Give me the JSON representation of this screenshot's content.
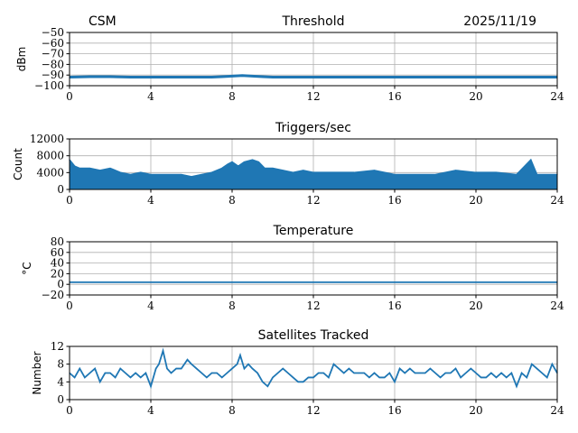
{
  "header": {
    "left": "CSM",
    "date": "2025/11/19"
  },
  "chart_data": [
    {
      "type": "line",
      "title": "Threshold",
      "ylabel": "dBm",
      "xlim": [
        0,
        24
      ],
      "ylim": [
        -100,
        -50
      ],
      "xticks": [
        "0",
        "4",
        "8",
        "12",
        "16",
        "20",
        "24"
      ],
      "yticks": [
        "−50",
        "−60",
        "−70",
        "−80",
        "−90",
        "−100"
      ],
      "grid": true,
      "x": [
        0,
        1,
        2,
        3,
        4,
        5,
        6,
        7,
        7.5,
        8,
        8.5,
        9,
        9.5,
        10,
        12,
        14,
        16,
        18,
        20,
        22,
        24
      ],
      "values": [
        -92,
        -91.5,
        -91.5,
        -92,
        -92,
        -92,
        -92,
        -92,
        -91.5,
        -91,
        -90.5,
        -91,
        -91.5,
        -92,
        -92,
        -92,
        -92,
        -92,
        -92,
        -92,
        -92
      ]
    },
    {
      "type": "line",
      "title": "Triggers/sec",
      "ylabel": "Count",
      "xlim": [
        0,
        24
      ],
      "ylim": [
        0,
        12000
      ],
      "xticks": [
        "0",
        "4",
        "8",
        "12",
        "16",
        "20",
        "24"
      ],
      "yticks": [
        "12000",
        "8000",
        "4000",
        "0"
      ],
      "grid": true,
      "x": [
        0,
        0.25,
        0.5,
        1,
        1.5,
        2,
        2.5,
        3,
        3.5,
        4,
        4.5,
        5,
        5.5,
        6,
        6.5,
        7,
        7.5,
        7.8,
        8,
        8.3,
        8.6,
        9,
        9.3,
        9.6,
        10,
        10.5,
        11,
        11.5,
        12,
        13,
        14,
        15,
        16,
        17,
        18,
        19,
        20,
        21,
        22,
        22.7,
        23,
        24
      ],
      "values": [
        7000,
        5500,
        5000,
        5000,
        4500,
        5000,
        4000,
        3500,
        4000,
        3500,
        3500,
        3500,
        3500,
        3000,
        3500,
        4000,
        5000,
        6000,
        6500,
        5500,
        6500,
        7000,
        6500,
        5000,
        5000,
        4500,
        4000,
        4500,
        4000,
        4000,
        4000,
        4500,
        3500,
        3500,
        3500,
        4500,
        4000,
        4000,
        3500,
        7000,
        3500,
        3500
      ],
      "baseline": [
        1500,
        1500,
        1200,
        1200,
        1200,
        1000,
        1000,
        1000,
        1000,
        1000,
        1000,
        1000,
        1000,
        1000,
        1000,
        1000,
        1000,
        1200,
        1200,
        1200,
        1200,
        1200,
        1200,
        1000,
        1000,
        1000,
        1000,
        1000,
        1000,
        1000,
        1000,
        1000,
        1000,
        1000,
        1000,
        1000,
        1000,
        1000,
        1000,
        1000,
        1000,
        1000
      ]
    },
    {
      "type": "line",
      "title": "Temperature",
      "ylabel": "°C",
      "xlim": [
        0,
        24
      ],
      "ylim": [
        -20,
        80
      ],
      "xticks": [
        "0",
        "4",
        "8",
        "12",
        "16",
        "20",
        "24"
      ],
      "yticks": [
        "80",
        "60",
        "40",
        "20",
        "0",
        "−20"
      ],
      "grid": true,
      "x": [
        0,
        24
      ],
      "values": [
        4,
        4
      ]
    },
    {
      "type": "line",
      "title": "Satellites Tracked",
      "ylabel": "Number",
      "xlim": [
        0,
        24
      ],
      "ylim": [
        0,
        12
      ],
      "xticks": [
        "0",
        "4",
        "8",
        "12",
        "16",
        "20",
        "24"
      ],
      "yticks": [
        "12",
        "8",
        "4",
        "0"
      ],
      "grid": true,
      "x": [
        0,
        0.25,
        0.5,
        0.75,
        1,
        1.25,
        1.5,
        1.75,
        2,
        2.25,
        2.5,
        2.75,
        3,
        3.25,
        3.5,
        3.75,
        4,
        4.25,
        4.4,
        4.6,
        4.8,
        5,
        5.25,
        5.5,
        5.8,
        6,
        6.25,
        6.5,
        6.75,
        7,
        7.25,
        7.5,
        7.75,
        8,
        8.25,
        8.4,
        8.6,
        8.8,
        9,
        9.25,
        9.5,
        9.75,
        10,
        10.25,
        10.5,
        10.75,
        11,
        11.25,
        11.5,
        11.75,
        12,
        12.25,
        12.5,
        12.75,
        13,
        13.25,
        13.5,
        13.75,
        14,
        14.25,
        14.5,
        14.75,
        15,
        15.25,
        15.5,
        15.75,
        16,
        16.25,
        16.5,
        16.75,
        17,
        17.25,
        17.5,
        17.75,
        18,
        18.25,
        18.5,
        18.75,
        19,
        19.25,
        19.5,
        19.75,
        20,
        20.25,
        20.5,
        20.75,
        21,
        21.25,
        21.5,
        21.75,
        22,
        22.25,
        22.5,
        22.75,
        23,
        23.25,
        23.5,
        23.75,
        24
      ],
      "values": [
        6,
        5,
        7,
        5,
        6,
        7,
        4,
        6,
        6,
        5,
        7,
        6,
        5,
        6,
        5,
        6,
        3,
        7,
        8,
        11,
        7,
        6,
        7,
        7,
        9,
        8,
        7,
        6,
        5,
        6,
        6,
        5,
        6,
        7,
        8,
        10,
        7,
        8,
        7,
        6,
        4,
        3,
        5,
        6,
        7,
        6,
        5,
        4,
        4,
        5,
        5,
        6,
        6,
        5,
        8,
        7,
        6,
        7,
        6,
        6,
        6,
        5,
        6,
        5,
        5,
        6,
        4,
        7,
        6,
        7,
        6,
        6,
        6,
        7,
        6,
        5,
        6,
        6,
        7,
        5,
        6,
        7,
        6,
        5,
        5,
        6,
        5,
        6,
        5,
        6,
        3,
        6,
        5,
        8,
        7,
        6,
        5,
        8,
        6
      ]
    }
  ]
}
